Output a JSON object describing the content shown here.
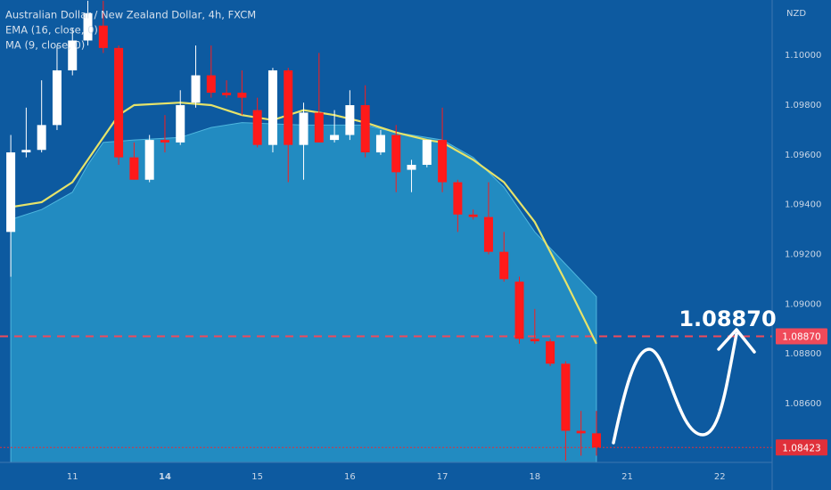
{
  "chart_data": {
    "type": "candlestick",
    "title": "Australian Dollar / New Zealand Dollar, 4h, FXCM",
    "indicators": [
      "EMA (16, close, 0)",
      "MA (9, close, 0)"
    ],
    "currency": "NZD",
    "up_color": "#ffffff",
    "down_color": "#ff1a1a",
    "background": "#0d5aa0",
    "open": [
      1.0929,
      1.0961,
      1.0962,
      1.0972,
      1.0994,
      1.1006,
      1.1012,
      1.1003,
      1.0959,
      1.095,
      1.0966,
      1.0965,
      1.0981,
      1.0992,
      1.0985,
      1.0985,
      1.0978,
      1.0964,
      1.0994,
      1.0964,
      1.0977,
      1.0966,
      1.0968,
      1.098,
      1.0961,
      1.0968,
      1.0954,
      1.0956,
      1.0966,
      1.0949,
      1.0936,
      1.0935,
      1.0921,
      1.0909,
      1.0886,
      1.0885,
      1.0876,
      1.0849,
      1.0848
    ],
    "high": [
      1.0968,
      1.0979,
      1.099,
      1.1004,
      1.1011,
      1.1022,
      1.1022,
      1.1004,
      1.0965,
      1.0968,
      1.0976,
      1.0986,
      1.1004,
      1.1004,
      1.099,
      1.0994,
      1.0983,
      1.0995,
      1.0995,
      1.0981,
      1.1001,
      1.0978,
      1.0986,
      1.0988,
      1.097,
      1.0972,
      1.0958,
      1.0966,
      1.0979,
      1.095,
      1.0938,
      1.0949,
      1.0929,
      1.0911,
      1.0898,
      1.0886,
      1.0877,
      1.0857,
      1.0857
    ],
    "low": [
      1.0911,
      1.0959,
      1.0961,
      1.097,
      1.0992,
      1.1004,
      1.1001,
      1.0956,
      1.095,
      1.0949,
      1.0961,
      1.0964,
      1.0979,
      1.0983,
      1.0983,
      1.0976,
      1.0963,
      1.0961,
      1.0949,
      1.095,
      1.0965,
      1.0965,
      1.0966,
      1.0959,
      1.096,
      1.0945,
      1.0945,
      1.0955,
      1.0945,
      1.0929,
      1.0934,
      1.092,
      1.0909,
      1.0884,
      1.0884,
      1.0875,
      1.0837,
      1.0839,
      1.0839
    ],
    "close": [
      1.0961,
      1.0962,
      1.0972,
      1.0994,
      1.1006,
      1.1017,
      1.1003,
      1.0959,
      1.095,
      1.0966,
      1.0965,
      1.098,
      1.0992,
      1.0985,
      1.0984,
      1.0983,
      1.0964,
      1.0994,
      1.0964,
      1.0977,
      1.0965,
      1.0968,
      1.098,
      1.0961,
      1.0968,
      1.0953,
      1.0956,
      1.0966,
      1.0949,
      1.0936,
      1.0935,
      1.0921,
      1.091,
      1.0886,
      1.0885,
      1.0876,
      1.0849,
      1.0848,
      1.08423
    ],
    "series": [
      {
        "name": "EMA (16, close, 0)",
        "color": "#e6e36a",
        "style": "line",
        "x": [
          0,
          2,
          4,
          5,
          7,
          8,
          11,
          13,
          15,
          17,
          19,
          21,
          23,
          25,
          27,
          28,
          30,
          32,
          34,
          36,
          38
        ],
        "values": [
          1.0939,
          1.0941,
          1.0949,
          1.0958,
          1.0976,
          1.098,
          1.0981,
          1.098,
          1.0976,
          1.0974,
          1.0978,
          1.0976,
          1.0973,
          1.0969,
          1.0966,
          1.0965,
          1.0958,
          1.0949,
          1.0933,
          1.0909,
          1.0884
        ]
      },
      {
        "name": "MA (9, close, 0)",
        "color": "#2a9ccc",
        "style": "area",
        "x": [
          0,
          2,
          4,
          5,
          6,
          8,
          11,
          13,
          15,
          19,
          23,
          25,
          28,
          30,
          32,
          34,
          36,
          38
        ],
        "values": [
          1.0934,
          1.0938,
          1.0945,
          1.0956,
          1.0965,
          1.0966,
          1.0967,
          1.0971,
          1.0973,
          1.0972,
          1.0972,
          1.0969,
          1.0966,
          1.0959,
          1.0947,
          1.0929,
          1.0916,
          1.0903
        ]
      }
    ],
    "ylim": [
      1.08363,
      1.10223
    ],
    "yticks": [
      {
        "value": 1.1,
        "label": "1.10000"
      },
      {
        "value": 1.098,
        "label": "1.09800"
      },
      {
        "value": 1.096,
        "label": "1.09600"
      },
      {
        "value": 1.094,
        "label": "1.09400"
      },
      {
        "value": 1.092,
        "label": "1.09200"
      },
      {
        "value": 1.09,
        "label": "1.09000"
      },
      {
        "value": 1.088,
        "label": "1.08800"
      },
      {
        "value": 1.086,
        "label": "1.08600"
      }
    ],
    "xlim": [
      -0.7,
      49.4
    ],
    "xticks": [
      {
        "value": 4,
        "label": "11"
      },
      {
        "value": 10,
        "label": "14"
      },
      {
        "value": 16,
        "label": "15"
      },
      {
        "value": 22,
        "label": "16"
      },
      {
        "value": 28,
        "label": "17"
      },
      {
        "value": 34,
        "label": "18"
      },
      {
        "value": 40,
        "label": "21"
      },
      {
        "value": 46,
        "label": "22"
      }
    ],
    "bold_xticks": [
      "14"
    ],
    "price_lines": [
      {
        "value": 1.0887,
        "label": "1.08870",
        "color": "#f04a5a",
        "style": "dashed"
      },
      {
        "value": 1.08423,
        "label": "1.08423",
        "color": "#e0303a",
        "style": "dotted"
      }
    ],
    "annotation": "1.08870"
  }
}
